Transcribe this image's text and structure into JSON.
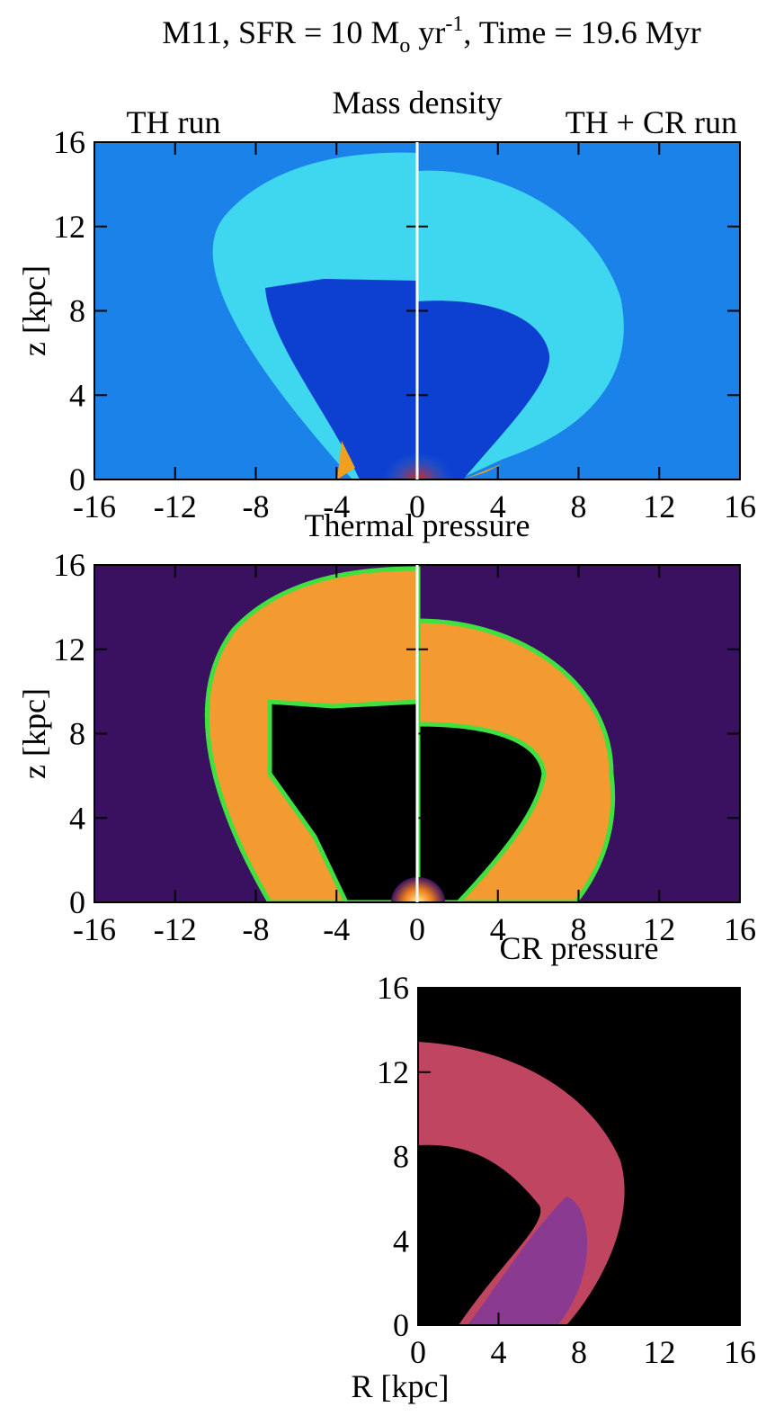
{
  "title": {
    "part1": "M11, SFR = 10 M",
    "sub": "o",
    "part2": " yr",
    "sup": "-1",
    "part3": ", Time = 19.6 Myr"
  },
  "chart_data": [
    {
      "type": "image",
      "title": "Mass density",
      "left_label": "TH run",
      "right_label": "TH + CR run",
      "ylabel": "z [kpc]",
      "xlim": [
        -16,
        16
      ],
      "ylim": [
        0,
        16
      ],
      "xticks": [
        -16,
        -12,
        -8,
        -4,
        0,
        4,
        8,
        12,
        16
      ],
      "yticks": [
        0,
        4,
        8,
        12,
        16
      ]
    },
    {
      "type": "image",
      "title": "Thermal pressure",
      "ylabel": "z [kpc]",
      "xlim": [
        -16,
        16
      ],
      "ylim": [
        0,
        16
      ],
      "xticks": [
        -16,
        -12,
        -8,
        -4,
        0,
        4,
        8,
        12,
        16
      ],
      "yticks": [
        0,
        4,
        8,
        12,
        16
      ]
    },
    {
      "type": "image",
      "title": "CR pressure",
      "xlabel": "R [kpc]",
      "xlim": [
        0,
        16
      ],
      "ylim": [
        0,
        16
      ],
      "xticks": [
        0,
        4,
        8,
        12,
        16
      ],
      "yticks": [
        0,
        4,
        8,
        12,
        16
      ]
    }
  ]
}
